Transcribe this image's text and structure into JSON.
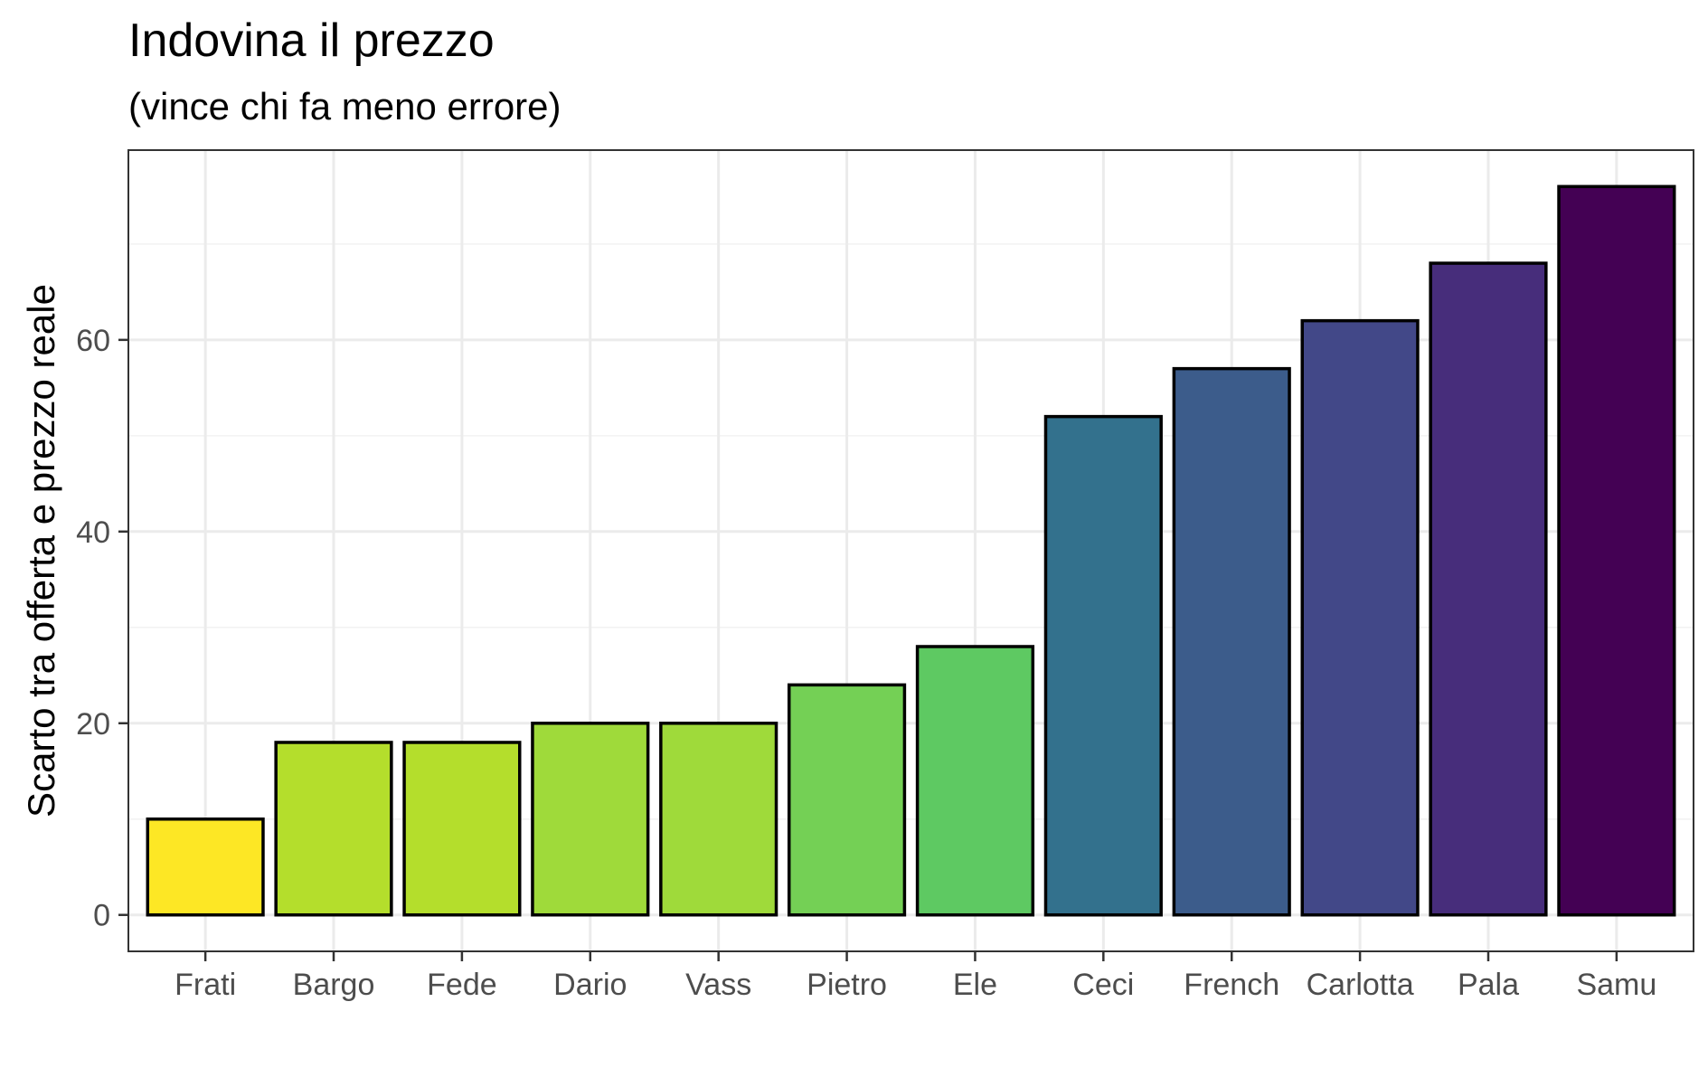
{
  "chart_data": {
    "type": "bar",
    "title": "Indovina il prezzo",
    "subtitle": "(vince chi fa meno errore)",
    "xlabel": "",
    "ylabel": "Scarto tra offerta e prezzo reale",
    "categories": [
      "Frati",
      "Bargo",
      "Fede",
      "Dario",
      "Vass",
      "Pietro",
      "Ele",
      "Ceci",
      "French",
      "Carlotta",
      "Pala",
      "Samu"
    ],
    "values": [
      10,
      18,
      18,
      20,
      20,
      24,
      28,
      52,
      57,
      62,
      68,
      76
    ],
    "colors": [
      "#FDE725",
      "#B4DE2C",
      "#B4DE2C",
      "#9FDA3A",
      "#9FDA3A",
      "#74D055",
      "#5EC962",
      "#33718D",
      "#3C5C8B",
      "#424888",
      "#472D7B",
      "#440154"
    ],
    "ylim": [
      -3.8,
      79.8
    ],
    "yticks": [
      0,
      20,
      40,
      60
    ],
    "grid": true,
    "legend": "none",
    "theme": "bw"
  }
}
